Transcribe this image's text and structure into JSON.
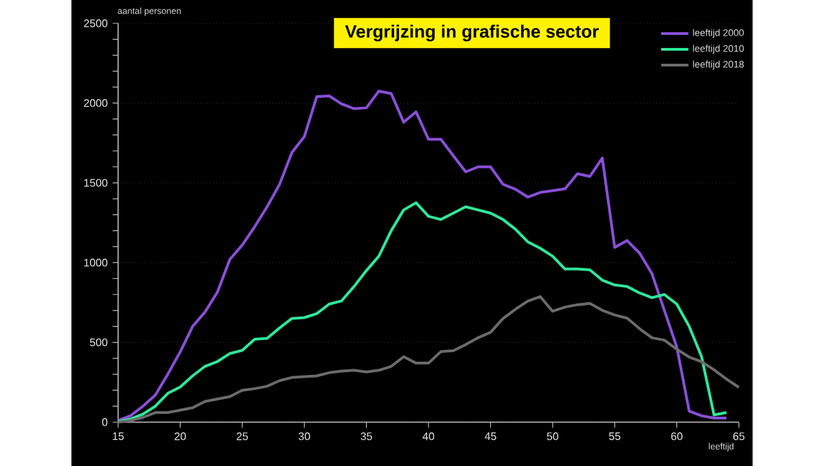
{
  "chart_data": {
    "type": "line",
    "title": "Vergrijzing in grafische sector",
    "xlabel": "leeftijd",
    "ylabel": "aantal personen",
    "xlim": [
      15,
      65
    ],
    "ylim": [
      0,
      2500
    ],
    "xticks": [
      15,
      20,
      25,
      30,
      35,
      40,
      45,
      50,
      55,
      60,
      65
    ],
    "yticks": [
      0,
      500,
      1000,
      1500,
      2000,
      2500
    ],
    "grid": "y",
    "legend": "top right",
    "series": [
      {
        "name": "leeftijd 2000",
        "color": "#8a4fd8",
        "x": [
          15,
          16,
          17,
          18,
          19,
          20,
          21,
          22,
          23,
          24,
          25,
          26,
          27,
          28,
          29,
          30,
          31,
          32,
          33,
          34,
          35,
          36,
          37,
          38,
          39,
          40,
          41,
          42,
          43,
          44,
          45,
          46,
          47,
          48,
          49,
          50,
          51,
          52,
          53,
          54,
          55,
          56,
          57,
          58,
          59,
          60,
          61,
          62,
          63,
          64
        ],
        "values": [
          10,
          40,
          100,
          170,
          300,
          440,
          600,
          690,
          815,
          1020,
          1110,
          1225,
          1350,
          1490,
          1690,
          1790,
          2040,
          2045,
          1995,
          1965,
          1970,
          2075,
          2060,
          1880,
          1945,
          1773,
          1773,
          1670,
          1569,
          1600,
          1600,
          1491,
          1460,
          1411,
          1440,
          1451,
          1463,
          1557,
          1540,
          1655,
          1095,
          1138,
          1060,
          931,
          701,
          471,
          69,
          40,
          26,
          26
        ]
      },
      {
        "name": "leeftijd 2010",
        "color": "#2ee89a",
        "x": [
          15,
          16,
          17,
          18,
          19,
          20,
          21,
          22,
          23,
          24,
          25,
          26,
          27,
          28,
          29,
          30,
          31,
          32,
          33,
          34,
          35,
          36,
          37,
          38,
          39,
          40,
          41,
          42,
          43,
          44,
          45,
          46,
          47,
          48,
          49,
          50,
          51,
          52,
          53,
          54,
          55,
          56,
          57,
          58,
          59,
          60,
          61,
          62,
          63,
          64
        ],
        "values": [
          5,
          20,
          50,
          100,
          180,
          220,
          290,
          350,
          380,
          430,
          450,
          520,
          525,
          590,
          650,
          655,
          680,
          740,
          760,
          850,
          950,
          1040,
          1200,
          1330,
          1375,
          1290,
          1270,
          1310,
          1350,
          1330,
          1310,
          1270,
          1210,
          1130,
          1090,
          1040,
          960,
          960,
          955,
          890,
          860,
          850,
          810,
          780,
          800,
          740,
          600,
          410,
          45,
          60
        ]
      },
      {
        "name": "leeftijd 2018",
        "color": "#6b6b6b",
        "x": [
          15,
          16,
          17,
          18,
          19,
          20,
          21,
          22,
          23,
          24,
          25,
          26,
          27,
          28,
          29,
          30,
          31,
          32,
          33,
          34,
          35,
          36,
          37,
          38,
          39,
          40,
          41,
          42,
          43,
          44,
          45,
          46,
          47,
          48,
          49,
          50,
          51,
          52,
          53,
          54,
          55,
          56,
          57,
          58,
          59,
          60,
          61,
          62,
          63,
          64,
          65
        ],
        "values": [
          0,
          10,
          30,
          60,
          60,
          75,
          90,
          130,
          145,
          160,
          200,
          210,
          225,
          260,
          280,
          285,
          290,
          310,
          320,
          325,
          315,
          325,
          350,
          410,
          370,
          370,
          442,
          448,
          486,
          529,
          563,
          649,
          707,
          759,
          787,
          695,
          721,
          736,
          744,
          701,
          672,
          652,
          586,
          529,
          514,
          457,
          408,
          379,
          328,
          270,
          218
        ]
      }
    ]
  }
}
